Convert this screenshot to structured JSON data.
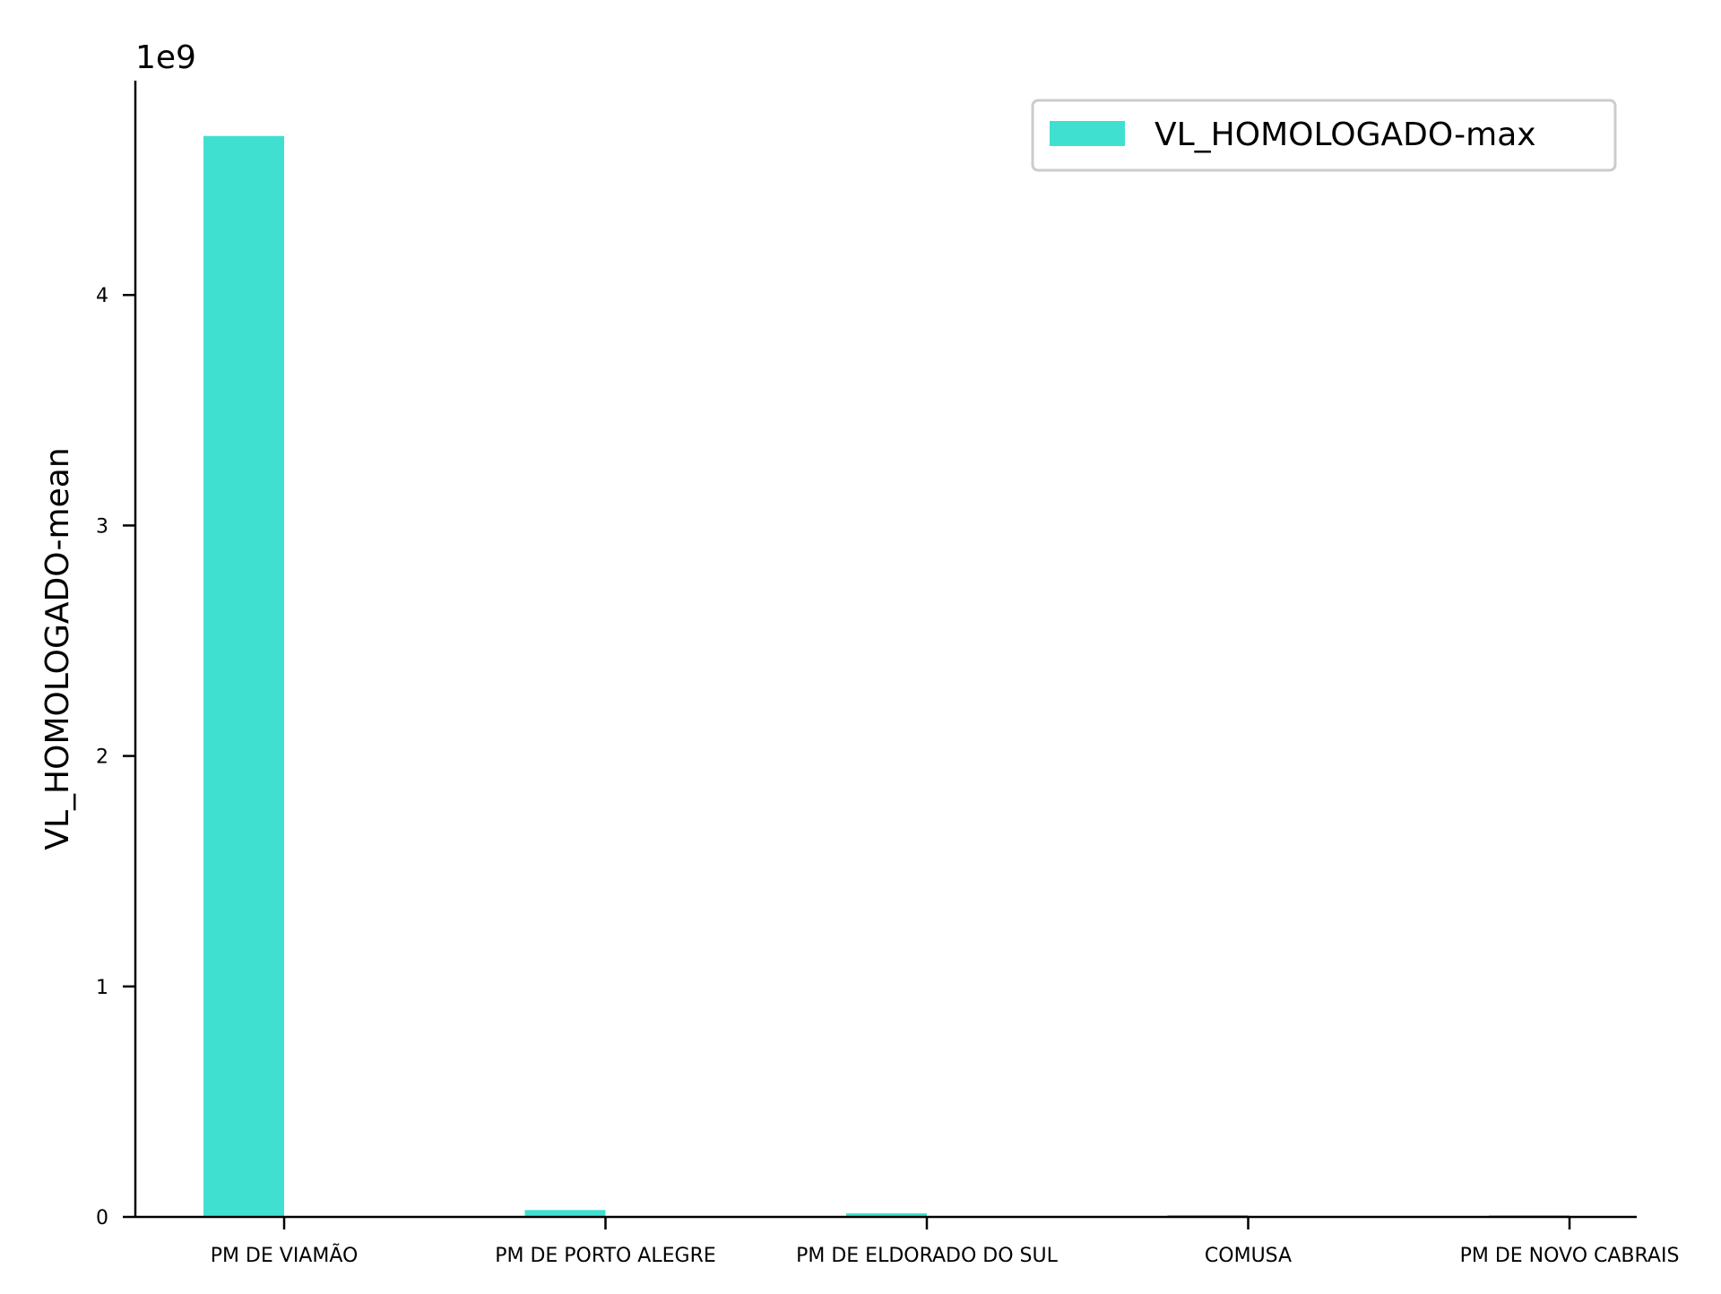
{
  "chart_data": {
    "type": "bar",
    "categories": [
      "PM DE VIAMÃO",
      "PM DE PORTO ALEGRE",
      "PM DE ELDORADO DO SUL",
      "COMUSA",
      "PM DE NOVO CABRAIS"
    ],
    "series": [
      {
        "name": "VL_HOMOLOGADO-max",
        "values": [
          4690000000,
          30000000,
          16000000,
          8000000,
          7000000
        ],
        "color": "#40E0D0"
      }
    ],
    "xlabel": "",
    "ylabel": "VL_HOMOLOGADO-mean",
    "ylim": [
      0,
      4930000000
    ],
    "yticks": [
      0,
      1,
      2,
      3,
      4
    ],
    "ytick_labels": [
      "0",
      "1",
      "2",
      "3",
      "4"
    ],
    "offset_label": "1e9",
    "legend": {
      "placement": "top-right",
      "entries": [
        "VL_HOMOLOGADO-max"
      ]
    },
    "grid": false
  }
}
